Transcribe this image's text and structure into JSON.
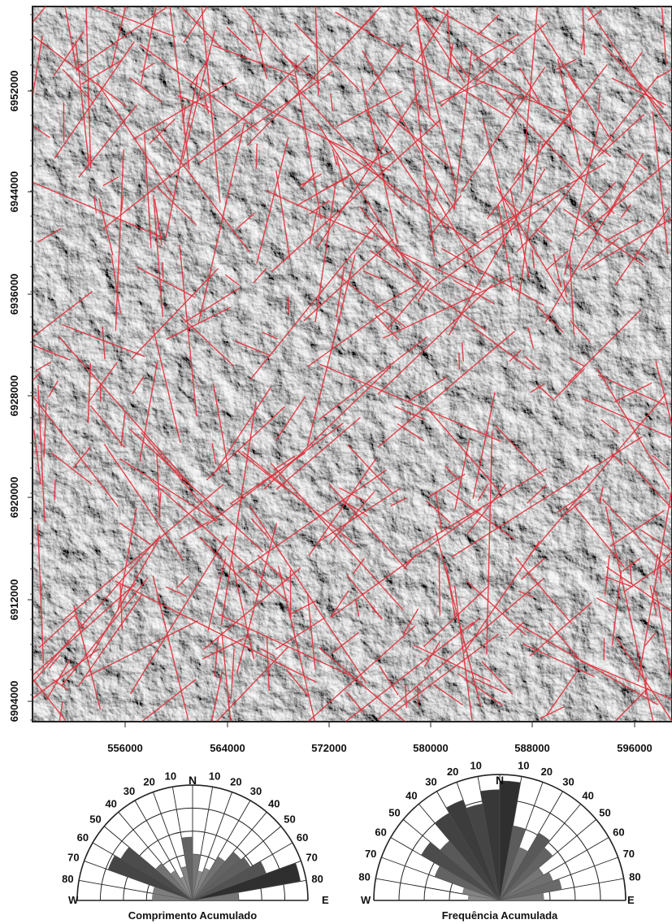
{
  "map": {
    "y_ticks": [
      "6952000",
      "6944000",
      "6936000",
      "6928000",
      "6920000",
      "6912000",
      "6904000"
    ],
    "x_ticks": [
      "556000",
      "564000",
      "572000",
      "580000",
      "588000",
      "596000"
    ],
    "lineament_color": "#e0303a"
  },
  "roses": [
    {
      "title": "Comprimento Acumulado",
      "north": "N",
      "west": "W",
      "east": "E",
      "left_labels": [
        "10",
        "20",
        "30",
        "40",
        "50",
        "60",
        "70",
        "80"
      ],
      "right_labels": [
        "10",
        "20",
        "30",
        "40",
        "50",
        "60",
        "70",
        "80"
      ],
      "bins_deg": [
        -85,
        -75,
        -65,
        -55,
        -45,
        -35,
        -25,
        -15,
        -5,
        5,
        15,
        25,
        35,
        45,
        55,
        65,
        75,
        85
      ],
      "values": [
        0.35,
        0.35,
        0.78,
        0.72,
        0.42,
        0.3,
        0.22,
        0.3,
        0.55,
        0.4,
        0.26,
        0.3,
        0.44,
        0.55,
        0.58,
        0.68,
        0.95,
        0.4
      ]
    },
    {
      "title": "Frequência Acumulada",
      "north": "N",
      "west": "W",
      "east": "E",
      "left_labels": [
        "10",
        "20",
        "30",
        "40",
        "50",
        "60",
        "70",
        "80"
      ],
      "right_labels": [
        "10",
        "20",
        "30",
        "40",
        "50",
        "60",
        "70",
        "80"
      ],
      "bins_deg": [
        -85,
        -75,
        -65,
        -55,
        -45,
        -35,
        -25,
        -15,
        -5,
        5,
        15,
        25,
        35,
        45,
        55,
        65,
        75,
        85
      ],
      "values": [
        0.25,
        0.3,
        0.55,
        0.72,
        0.62,
        0.8,
        0.85,
        0.78,
        0.88,
        0.95,
        0.6,
        0.45,
        0.62,
        0.55,
        0.4,
        0.45,
        0.5,
        0.35
      ]
    }
  ]
}
